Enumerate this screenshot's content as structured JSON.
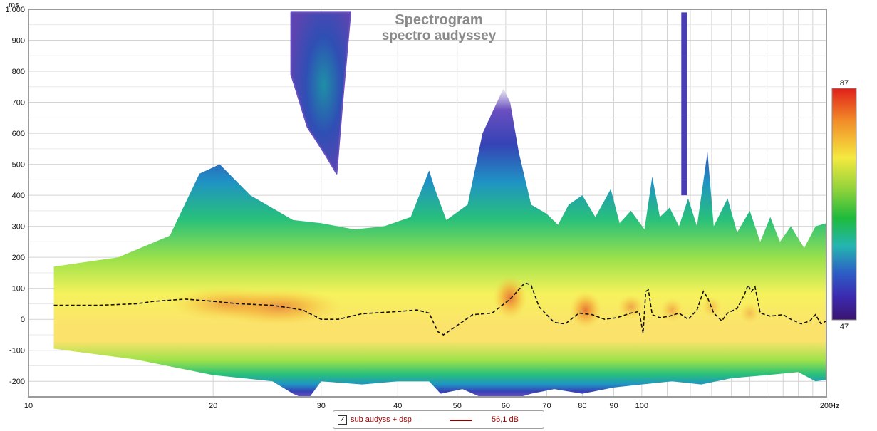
{
  "chart_data": {
    "type": "heatmap",
    "title": "Spectrogram",
    "subtitle": "spectro audyssey",
    "xlabel": "Hz",
    "ylabel": "ms",
    "x_scale": "log",
    "xlim": [
      10,
      200
    ],
    "ylim": [
      -250,
      1000
    ],
    "x_ticks": [
      {
        "v": 10,
        "label": "10"
      },
      {
        "v": 20,
        "label": "20"
      },
      {
        "v": 30,
        "label": "30"
      },
      {
        "v": 40,
        "label": "40"
      },
      {
        "v": 50,
        "label": "50"
      },
      {
        "v": 60,
        "label": "60"
      },
      {
        "v": 70,
        "label": "70"
      },
      {
        "v": 80,
        "label": "80"
      },
      {
        "v": 90,
        "label": "90"
      },
      {
        "v": 100,
        "label": "100"
      },
      {
        "v": 200,
        "label": "200"
      }
    ],
    "y_ticks": [
      {
        "v": 1000,
        "label": "1.000"
      },
      {
        "v": 900,
        "label": "900"
      },
      {
        "v": 800,
        "label": "800"
      },
      {
        "v": 700,
        "label": "700"
      },
      {
        "v": 600,
        "label": "600"
      },
      {
        "v": 500,
        "label": "500"
      },
      {
        "v": 400,
        "label": "400"
      },
      {
        "v": 300,
        "label": "300"
      },
      {
        "v": 200,
        "label": "200"
      },
      {
        "v": 100,
        "label": "100"
      },
      {
        "v": 0,
        "label": "0"
      },
      {
        "v": -100,
        "label": "-100"
      },
      {
        "v": -200,
        "label": "-200"
      }
    ],
    "colorbar": {
      "min": 47,
      "max": 87,
      "min_label": "47",
      "max_label": "87"
    },
    "grid": true,
    "legend_position": "bottom",
    "envelope_upper": [
      [
        11,
        170
      ],
      [
        14,
        200
      ],
      [
        17,
        270
      ],
      [
        19,
        470
      ],
      [
        20.5,
        500
      ],
      [
        23,
        400
      ],
      [
        27,
        320
      ],
      [
        30,
        310
      ],
      [
        34,
        290
      ],
      [
        38,
        300
      ],
      [
        42,
        330
      ],
      [
        45,
        480
      ],
      [
        46,
        420
      ],
      [
        48,
        320
      ],
      [
        52,
        370
      ],
      [
        55,
        600
      ],
      [
        59.5,
        745
      ],
      [
        61,
        700
      ],
      [
        63,
        540
      ],
      [
        66,
        370
      ],
      [
        70,
        340
      ],
      [
        73,
        305
      ],
      [
        76,
        370
      ],
      [
        80,
        400
      ],
      [
        84,
        330
      ],
      [
        89,
        420
      ],
      [
        92,
        310
      ],
      [
        96,
        350
      ],
      [
        101,
        290
      ],
      [
        104,
        460
      ],
      [
        107,
        330
      ],
      [
        111,
        360
      ],
      [
        115,
        300
      ],
      [
        119,
        390
      ],
      [
        123,
        300
      ],
      [
        128,
        540
      ],
      [
        131,
        300
      ],
      [
        138,
        390
      ],
      [
        143,
        280
      ],
      [
        150,
        350
      ],
      [
        156,
        250
      ],
      [
        162,
        330
      ],
      [
        168,
        250
      ],
      [
        175,
        300
      ],
      [
        184,
        230
      ],
      [
        192,
        300
      ],
      [
        200,
        310
      ]
    ],
    "envelope_lower": [
      [
        11,
        -95
      ],
      [
        15,
        -130
      ],
      [
        20,
        -180
      ],
      [
        25,
        -200
      ],
      [
        27,
        -240
      ],
      [
        28.5,
        -260
      ],
      [
        30,
        -200
      ],
      [
        35,
        -210
      ],
      [
        40,
        -200
      ],
      [
        45,
        -200
      ],
      [
        47,
        -240
      ],
      [
        51,
        -225
      ],
      [
        56,
        -260
      ],
      [
        61,
        -260
      ],
      [
        66,
        -240
      ],
      [
        72,
        -225
      ],
      [
        80,
        -240
      ],
      [
        90,
        -220
      ],
      [
        100,
        -210
      ],
      [
        112,
        -200
      ],
      [
        125,
        -210
      ],
      [
        140,
        -190
      ],
      [
        160,
        -180
      ],
      [
        180,
        -170
      ],
      [
        192,
        -200
      ],
      [
        200,
        -195
      ]
    ],
    "high_blob": [
      [
        26.8,
        990
      ],
      [
        33.5,
        990
      ],
      [
        32.5,
        700
      ],
      [
        31.8,
        470
      ],
      [
        30.5,
        530
      ],
      [
        28.5,
        620
      ],
      [
        26.8,
        790
      ]
    ],
    "spike": [
      [
        116,
        990
      ],
      [
        118.5,
        990
      ],
      [
        118.5,
        400
      ],
      [
        116,
        400
      ]
    ],
    "hot_regions": [
      {
        "center": [
          25.5,
          40
        ],
        "spread_x": 7,
        "spread_y": 60,
        "level": 0.6
      },
      {
        "center": [
          21,
          50
        ],
        "spread_x": 5,
        "spread_y": 55,
        "level": 0.45
      },
      {
        "center": [
          61,
          70
        ],
        "spread_x": 4,
        "spread_y": 70,
        "level": 0.75
      },
      {
        "center": [
          81,
          30
        ],
        "spread_x": 5,
        "spread_y": 60,
        "level": 0.75
      },
      {
        "center": [
          96,
          40
        ],
        "spread_x": 5,
        "spread_y": 40,
        "level": 0.45
      },
      {
        "center": [
          112,
          30
        ],
        "spread_x": 5,
        "spread_y": 40,
        "level": 0.4
      },
      {
        "center": [
          130,
          40
        ],
        "spread_x": 5,
        "spread_y": 35,
        "level": 0.3
      },
      {
        "center": [
          150,
          20
        ],
        "spread_x": 6,
        "spread_y": 35,
        "level": 0.3
      }
    ],
    "series": [
      {
        "name": "sub audyss + dsp",
        "value_label": "56,1 dB",
        "color": "#8b0000",
        "points": [
          [
            11,
            45
          ],
          [
            13,
            45
          ],
          [
            15,
            50
          ],
          [
            16,
            58
          ],
          [
            18,
            65
          ],
          [
            19.5,
            60
          ],
          [
            22,
            50
          ],
          [
            25,
            45
          ],
          [
            28,
            30
          ],
          [
            30,
            0
          ],
          [
            32,
            0
          ],
          [
            35,
            18
          ],
          [
            40,
            25
          ],
          [
            43,
            30
          ],
          [
            45,
            20
          ],
          [
            46.5,
            -40
          ],
          [
            47.5,
            -50
          ],
          [
            50,
            -20
          ],
          [
            53,
            15
          ],
          [
            57,
            20
          ],
          [
            61,
            65
          ],
          [
            64.5,
            118
          ],
          [
            66,
            110
          ],
          [
            68,
            40
          ],
          [
            72,
            -10
          ],
          [
            75,
            -15
          ],
          [
            79,
            20
          ],
          [
            83,
            15
          ],
          [
            87,
            0
          ],
          [
            91,
            5
          ],
          [
            96,
            20
          ],
          [
            99,
            25
          ],
          [
            100.5,
            -45
          ],
          [
            101.5,
            90
          ],
          [
            102.5,
            95
          ],
          [
            104,
            15
          ],
          [
            107,
            5
          ],
          [
            111,
            10
          ],
          [
            115,
            20
          ],
          [
            119,
            0
          ],
          [
            123,
            30
          ],
          [
            126,
            90
          ],
          [
            128,
            70
          ],
          [
            131,
            20
          ],
          [
            135,
            -5
          ],
          [
            138,
            20
          ],
          [
            143,
            35
          ],
          [
            147,
            80
          ],
          [
            149,
            110
          ],
          [
            151,
            90
          ],
          [
            153,
            105
          ],
          [
            156,
            20
          ],
          [
            162,
            10
          ],
          [
            170,
            15
          ],
          [
            175,
            0
          ],
          [
            182,
            -15
          ],
          [
            188,
            -5
          ],
          [
            192,
            15
          ],
          [
            196,
            -15
          ],
          [
            200,
            -5
          ]
        ]
      }
    ]
  },
  "legend": {
    "check_glyph": "✓",
    "series_name": "sub audyss + dsp",
    "value": "56,1 dB"
  }
}
